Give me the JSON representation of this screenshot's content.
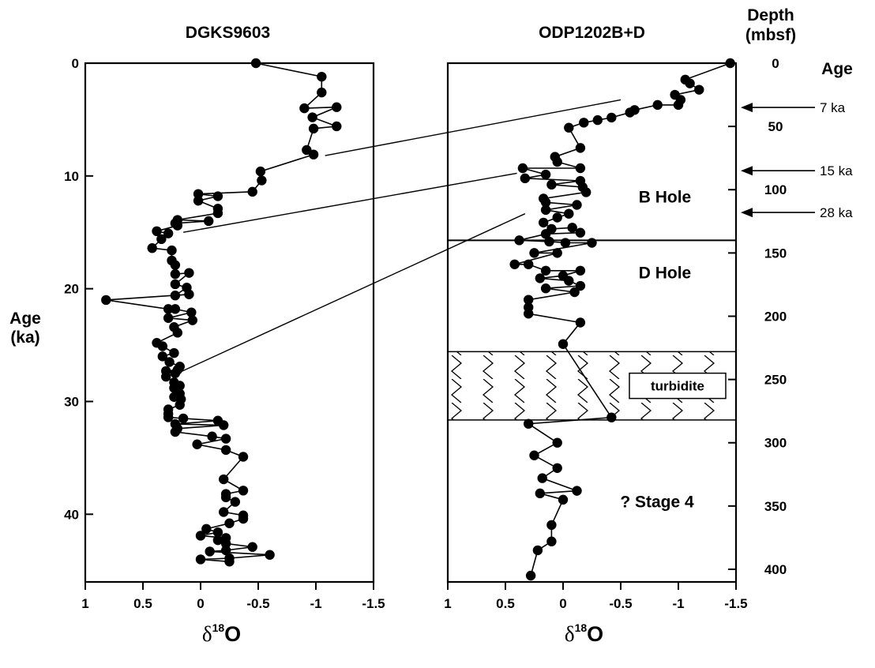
{
  "chart_data": [
    {
      "type": "line",
      "title": "DGKS9603",
      "xlabel_base": "δ",
      "xlabel_sup": "18",
      "xlabel_main": "O",
      "ylabel_line1": "Age",
      "ylabel_line2": "(ka)",
      "xlim": [
        1,
        -1.5
      ],
      "ylim": [
        46,
        0
      ],
      "xticks": [
        "1",
        "0.5",
        "0",
        "-0.5",
        "-1",
        "-1.5"
      ],
      "xtick_values": [
        1,
        0.5,
        0,
        -0.5,
        -1,
        -1.5
      ],
      "yticks": [
        "0",
        "10",
        "20",
        "30",
        "40"
      ],
      "ytick_values": [
        0,
        10,
        20,
        30,
        40
      ],
      "series": [
        {
          "points": [
            [
              -0.48,
              0.0
            ],
            [
              -1.05,
              1.2
            ],
            [
              -1.05,
              2.6
            ],
            [
              -0.9,
              4.0
            ],
            [
              -1.18,
              3.9
            ],
            [
              -0.97,
              4.8
            ],
            [
              -1.18,
              5.6
            ],
            [
              -0.98,
              5.8
            ],
            [
              -0.92,
              7.7
            ],
            [
              -0.98,
              8.1
            ],
            [
              -0.52,
              9.6
            ],
            [
              -0.53,
              10.4
            ],
            [
              -0.45,
              11.4
            ],
            [
              0.02,
              11.6
            ],
            [
              -0.15,
              11.8
            ],
            [
              0.02,
              12.2
            ],
            [
              -0.15,
              12.9
            ],
            [
              -0.15,
              13.3
            ],
            [
              0.2,
              13.9
            ],
            [
              -0.07,
              14.0
            ],
            [
              0.22,
              14.2
            ],
            [
              0.2,
              14.4
            ],
            [
              0.38,
              14.9
            ],
            [
              0.28,
              15.1
            ],
            [
              0.34,
              15.6
            ],
            [
              0.42,
              16.4
            ],
            [
              0.25,
              16.6
            ],
            [
              0.25,
              17.5
            ],
            [
              0.22,
              17.9
            ],
            [
              0.22,
              18.7
            ],
            [
              0.1,
              18.6
            ],
            [
              0.22,
              19.6
            ],
            [
              0.12,
              19.9
            ],
            [
              0.22,
              20.6
            ],
            [
              0.1,
              20.5
            ],
            [
              0.82,
              21.0
            ],
            [
              0.28,
              21.8
            ],
            [
              0.22,
              21.8
            ],
            [
              0.08,
              22.1
            ],
            [
              0.28,
              22.6
            ],
            [
              0.07,
              22.8
            ],
            [
              0.23,
              23.4
            ],
            [
              0.2,
              23.9
            ],
            [
              0.38,
              24.8
            ],
            [
              0.33,
              25.1
            ],
            [
              0.23,
              25.7
            ],
            [
              0.33,
              26.0
            ],
            [
              0.27,
              26.5
            ],
            [
              0.18,
              26.9
            ],
            [
              0.2,
              27.2
            ],
            [
              0.3,
              27.3
            ],
            [
              0.22,
              27.5
            ],
            [
              0.3,
              27.8
            ],
            [
              0.23,
              28.3
            ],
            [
              0.18,
              28.6
            ],
            [
              0.23,
              28.8
            ],
            [
              0.18,
              29.3
            ],
            [
              0.23,
              29.6
            ],
            [
              0.17,
              29.8
            ],
            [
              0.18,
              30.3
            ],
            [
              0.28,
              30.7
            ],
            [
              0.28,
              31.1
            ],
            [
              0.28,
              31.4
            ],
            [
              0.15,
              31.5
            ],
            [
              -0.15,
              31.7
            ],
            [
              0.22,
              32.0
            ],
            [
              -0.2,
              32.1
            ],
            [
              0.2,
              32.4
            ],
            [
              0.22,
              32.7
            ],
            [
              -0.1,
              33.1
            ],
            [
              -0.22,
              33.3
            ],
            [
              0.03,
              33.8
            ],
            [
              -0.22,
              34.3
            ],
            [
              -0.37,
              34.9
            ],
            [
              -0.2,
              36.9
            ],
            [
              -0.37,
              37.9
            ],
            [
              -0.22,
              38.2
            ],
            [
              -0.22,
              38.5
            ],
            [
              -0.3,
              38.9
            ],
            [
              -0.2,
              39.8
            ],
            [
              -0.37,
              40.1
            ],
            [
              -0.37,
              40.4
            ],
            [
              -0.25,
              40.8
            ],
            [
              -0.05,
              41.3
            ],
            [
              -0.15,
              41.6
            ],
            [
              0.0,
              41.9
            ],
            [
              -0.22,
              42.1
            ],
            [
              -0.15,
              42.3
            ],
            [
              -0.22,
              42.6
            ],
            [
              -0.45,
              42.9
            ],
            [
              -0.22,
              43.2
            ],
            [
              -0.08,
              43.3
            ],
            [
              -0.6,
              43.6
            ],
            [
              -0.25,
              43.9
            ],
            [
              0.0,
              44.0
            ],
            [
              -0.25,
              44.2
            ]
          ]
        }
      ]
    },
    {
      "type": "line",
      "title": "ODP1202B+D",
      "xlabel_base": "δ",
      "xlabel_sup": "18",
      "xlabel_main": "O",
      "right_axis_title_line1": "Depth",
      "right_axis_title_line2": "(mbsf)",
      "age_label": "Age",
      "xlim": [
        1,
        -1.5
      ],
      "ylim": [
        410,
        0
      ],
      "xticks": [
        "1",
        "0.5",
        "0",
        "-0.5",
        "-1",
        "-1.5"
      ],
      "xtick_values": [
        1,
        0.5,
        0,
        -0.5,
        -1,
        -1.5
      ],
      "yticks": [
        "0",
        "50",
        "100",
        "150",
        "200",
        "250",
        "300",
        "350",
        "400"
      ],
      "ytick_values": [
        0,
        50,
        100,
        150,
        200,
        250,
        300,
        350,
        400
      ],
      "series": [
        {
          "points": [
            [
              -1.45,
              0
            ],
            [
              -1.06,
              13
            ],
            [
              -1.1,
              16
            ],
            [
              -1.18,
              21
            ],
            [
              -0.97,
              25
            ],
            [
              -1.02,
              29
            ],
            [
              -1.0,
              33
            ],
            [
              -0.82,
              33
            ],
            [
              -0.62,
              37
            ],
            [
              -0.58,
              39
            ],
            [
              -0.42,
              43
            ],
            [
              -0.3,
              45
            ],
            [
              -0.18,
              47
            ],
            [
              -0.05,
              51
            ],
            [
              -0.15,
              67
            ],
            [
              0.07,
              74
            ],
            [
              0.05,
              78
            ],
            [
              -0.15,
              83
            ],
            [
              0.35,
              83
            ],
            [
              0.15,
              88
            ],
            [
              0.33,
              91
            ],
            [
              -0.15,
              93
            ],
            [
              0.1,
              96
            ],
            [
              -0.17,
              98
            ],
            [
              -0.2,
              102
            ],
            [
              0.17,
              107
            ],
            [
              0.15,
              110
            ],
            [
              -0.12,
              112
            ],
            [
              0.15,
              116
            ],
            [
              -0.05,
              119
            ],
            [
              0.05,
              122
            ],
            [
              0.17,
              126
            ],
            [
              0.1,
              131
            ],
            [
              -0.08,
              130
            ],
            [
              -0.15,
              134
            ],
            [
              0.15,
              135
            ],
            [
              0.38,
              140
            ],
            [
              0.12,
              141
            ],
            [
              -0.02,
              142
            ],
            [
              -0.25,
              142
            ],
            [
              0.25,
              150
            ],
            [
              0.05,
              150
            ],
            [
              0.42,
              159
            ],
            [
              0.3,
              159
            ],
            [
              0.15,
              164
            ],
            [
              -0.15,
              164
            ],
            [
              0.0,
              168
            ],
            [
              0.2,
              170
            ],
            [
              -0.05,
              172
            ],
            [
              -0.15,
              176
            ],
            [
              0.15,
              178
            ],
            [
              -0.1,
              181
            ],
            [
              0.3,
              187
            ],
            [
              0.3,
              193
            ],
            [
              0.3,
              198
            ],
            [
              -0.15,
              205
            ],
            [
              0.0,
              222
            ],
            [
              -0.42,
              280
            ],
            [
              0.3,
              285
            ],
            [
              0.05,
              300
            ],
            [
              0.25,
              310
            ],
            [
              0.05,
              320
            ],
            [
              0.18,
              328
            ],
            [
              -0.12,
              338
            ],
            [
              0.2,
              340
            ],
            [
              0.0,
              345
            ],
            [
              0.1,
              365
            ],
            [
              0.1,
              378
            ],
            [
              0.22,
              385
            ],
            [
              0.28,
              405
            ]
          ]
        }
      ],
      "markers": [
        {
          "label": "B Hole",
          "depth": 105
        },
        {
          "label": "D Hole",
          "depth": 165
        }
      ],
      "hole_boundary_depth": 140,
      "turbidite": {
        "label": "turbidite",
        "top": 228,
        "bottom": 282
      },
      "stage_label": "? Stage 4",
      "stage_depth": 346,
      "age_arrows": [
        {
          "label": "7 ka",
          "depth": 35
        },
        {
          "label": "15 ka",
          "depth": 85
        },
        {
          "label": "28 ka",
          "depth": 118
        }
      ]
    }
  ],
  "correlation_lines": [
    {
      "from_age": 8.2,
      "from_x": -1.08,
      "to_depth": 29,
      "to_x": -0.5
    },
    {
      "from_age": 15.0,
      "from_x": 0.15,
      "to_depth": 87,
      "to_x": 0.4
    },
    {
      "from_age": 27.5,
      "from_x": 0.2,
      "to_depth": 119,
      "to_x": 0.33
    }
  ]
}
